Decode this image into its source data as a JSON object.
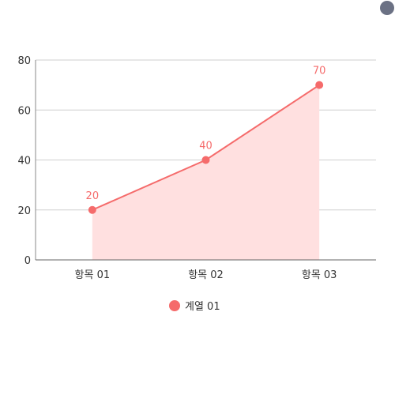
{
  "chart_data": {
    "type": "area",
    "title": "",
    "xlabel": "",
    "ylabel": "",
    "categories": [
      "항목 01",
      "항목 02",
      "항목 03"
    ],
    "series": [
      {
        "name": "계열 01",
        "values": [
          20,
          40,
          70
        ],
        "color": "#f56b6b"
      }
    ],
    "ylim": [
      0,
      80
    ],
    "yticks": [
      0,
      20,
      40,
      60,
      80
    ],
    "grid": true,
    "legend_position": "bottom",
    "fill_color": "#ffe0e0"
  },
  "icons": {
    "top_right": "user-avatar-icon"
  }
}
